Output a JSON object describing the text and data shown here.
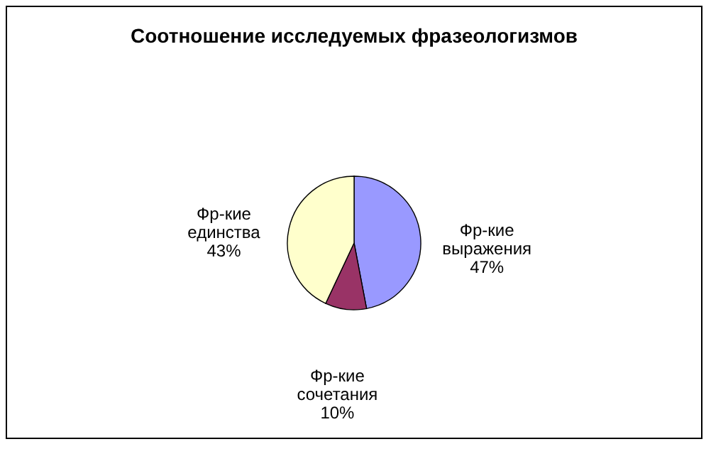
{
  "chart_data": {
    "type": "pie",
    "title": "Соотношение исследуемых фразеологизмов",
    "categories": [
      "Фр-кие выражения",
      "Фр-кие сочетания",
      "Фр-кие единства"
    ],
    "values": [
      47,
      10,
      43
    ],
    "colors": [
      "#9999ff",
      "#993366",
      "#ffffcc"
    ],
    "value_labels": [
      "47%",
      "10%",
      "43%"
    ],
    "legend": false
  }
}
